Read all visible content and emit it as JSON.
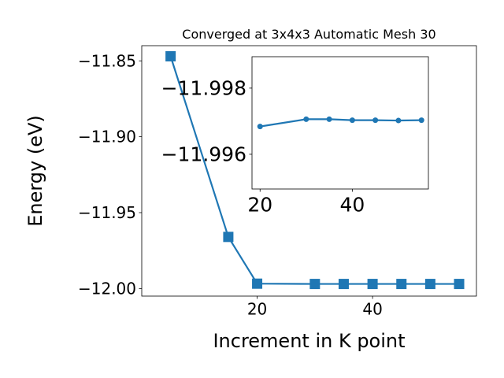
{
  "chart_data": [
    {
      "type": "line",
      "title": "Converged at 3x4x3 Automatic Mesh 30",
      "xlabel": "Increment in K point",
      "ylabel": "Energy (eV)",
      "xlim": [
        0,
        58
      ],
      "ylim": [
        -12.005,
        -11.84
      ],
      "xticks": [
        {
          "value": 20,
          "label": "20"
        },
        {
          "value": 40,
          "label": "40"
        }
      ],
      "yticks": [
        {
          "value": -11.85,
          "label": "−11.85"
        },
        {
          "value": -11.9,
          "label": "−11.90"
        },
        {
          "value": -11.95,
          "label": "−11.95"
        },
        {
          "value": -12.0,
          "label": "−12.00"
        }
      ],
      "grid": false,
      "marker": "square",
      "color": "#1f77b4",
      "series": [
        {
          "x": [
            5,
            15,
            20,
            30,
            35,
            40,
            45,
            50,
            55
          ],
          "y": [
            -11.847,
            -11.966,
            -11.9968,
            -11.997,
            -11.997,
            -11.997,
            -11.997,
            -11.997,
            -11.997
          ]
        }
      ]
    },
    {
      "type": "line",
      "inset": true,
      "xlim": [
        18.25,
        56.5
      ],
      "ylim": [
        -11.99495,
        -11.99895
      ],
      "xticks": [
        {
          "value": 20,
          "label": "20"
        },
        {
          "value": 40,
          "label": "40"
        }
      ],
      "yticks": [
        {
          "value": -11.998,
          "label": "−11.998"
        },
        {
          "value": -11.996,
          "label": "−11.996"
        }
      ],
      "grid": false,
      "marker": "circle",
      "color": "#1f77b4",
      "series": [
        {
          "x": [
            20,
            30,
            35,
            40,
            45,
            50,
            55
          ],
          "y": [
            -11.99684,
            -11.99706,
            -11.99706,
            -11.99703,
            -11.99703,
            -11.99702,
            -11.99703
          ]
        }
      ]
    }
  ]
}
